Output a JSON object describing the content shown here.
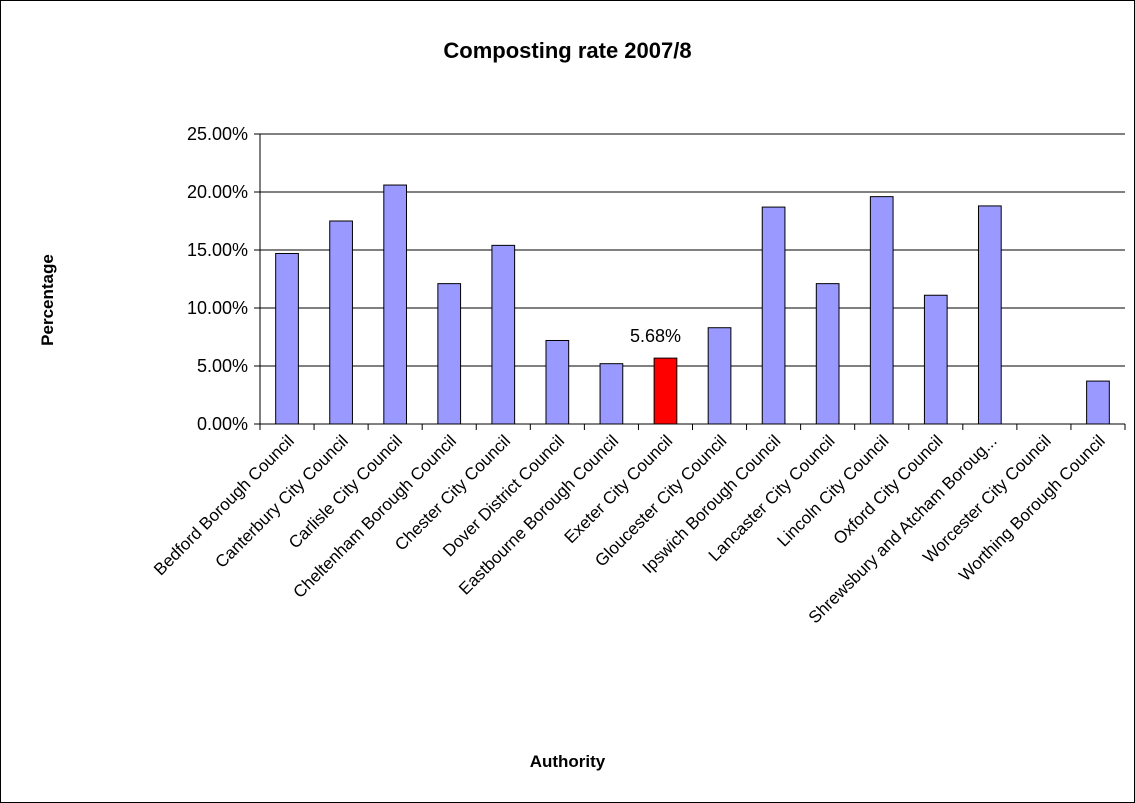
{
  "chart_data": {
    "type": "bar",
    "title": "Composting rate 2007/8",
    "xlabel": "Authority",
    "ylabel": "Percentage",
    "ylim": [
      0,
      25
    ],
    "yticks": [
      0,
      5,
      10,
      15,
      20,
      25
    ],
    "ytick_labels": [
      "0.00%",
      "5.00%",
      "10.00%",
      "15.00%",
      "20.00%",
      "25.00%"
    ],
    "grid": true,
    "categories": [
      "Bedford Borough Council",
      "Canterbury City Council",
      "Carlisle City Council",
      "Cheltenham Borough Council",
      "Chester City Council",
      "Dover District Council",
      "Eastbourne Borough Council",
      "Exeter City Council",
      "Gloucester City Council",
      "Ipswich Borough Council",
      "Lancaster City Council",
      "Lincoln City Council",
      "Oxford City Council",
      "Shrewsbury and Atcham Boroug...",
      "Worcester City Council",
      "Worthing Borough Council"
    ],
    "values": [
      14.7,
      17.5,
      20.6,
      12.1,
      15.4,
      7.2,
      5.2,
      5.68,
      8.3,
      18.7,
      12.1,
      19.6,
      11.1,
      18.8,
      0,
      3.7
    ],
    "colors": {
      "default": "#9999ff",
      "highlight": "#ff0000",
      "gridline": "#000000"
    },
    "highlight_index": 7,
    "data_labels": [
      {
        "index": 7,
        "text": "5.68%"
      }
    ]
  }
}
